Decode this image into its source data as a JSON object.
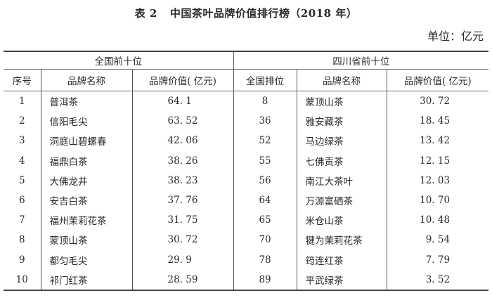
{
  "title": {
    "number": "表 2",
    "text": "中国茶叶品牌价值排行榜（2018 年）"
  },
  "unit": "单位：亿元",
  "groups": [
    "全国前十位",
    "四川省前十位"
  ],
  "columns": [
    "序号",
    "品牌名称",
    "品牌价值( 亿元)",
    "全国排位",
    "品牌名称",
    "品牌价值( 亿元)"
  ],
  "rows": [
    [
      "1",
      "普洱茶",
      "64. 1",
      "8",
      "蒙顶山茶",
      "30. 72"
    ],
    [
      "2",
      "信阳毛尖",
      "63. 52",
      "36",
      "雅安藏茶",
      "18. 45"
    ],
    [
      "3",
      "洞庭山碧螺春",
      "42. 06",
      "52",
      "马边绿茶",
      "13. 42"
    ],
    [
      "4",
      "福鼎白茶",
      "38. 26",
      "55",
      "七佛贡茶",
      "12. 15"
    ],
    [
      "5",
      "大佛龙井",
      "38. 23",
      "56",
      "南江大茶叶",
      "12. 03"
    ],
    [
      "6",
      "安吉白茶",
      "37. 76",
      "64",
      "万源富硒茶",
      "10. 70"
    ],
    [
      "7",
      "福州茉莉花茶",
      "31. 75",
      "65",
      "米仓山茶",
      "10. 48"
    ],
    [
      "8",
      "蒙顶山茶",
      "30. 72",
      "70",
      "犍为茉莉花茶",
      "9. 54"
    ],
    [
      "9",
      "都匀毛尖",
      "29. 9",
      "78",
      "筠连红茶",
      "7. 79"
    ],
    [
      "10",
      "祁门红茶",
      "28. 59",
      "89",
      "平武绿茶",
      "3. 52"
    ]
  ]
}
